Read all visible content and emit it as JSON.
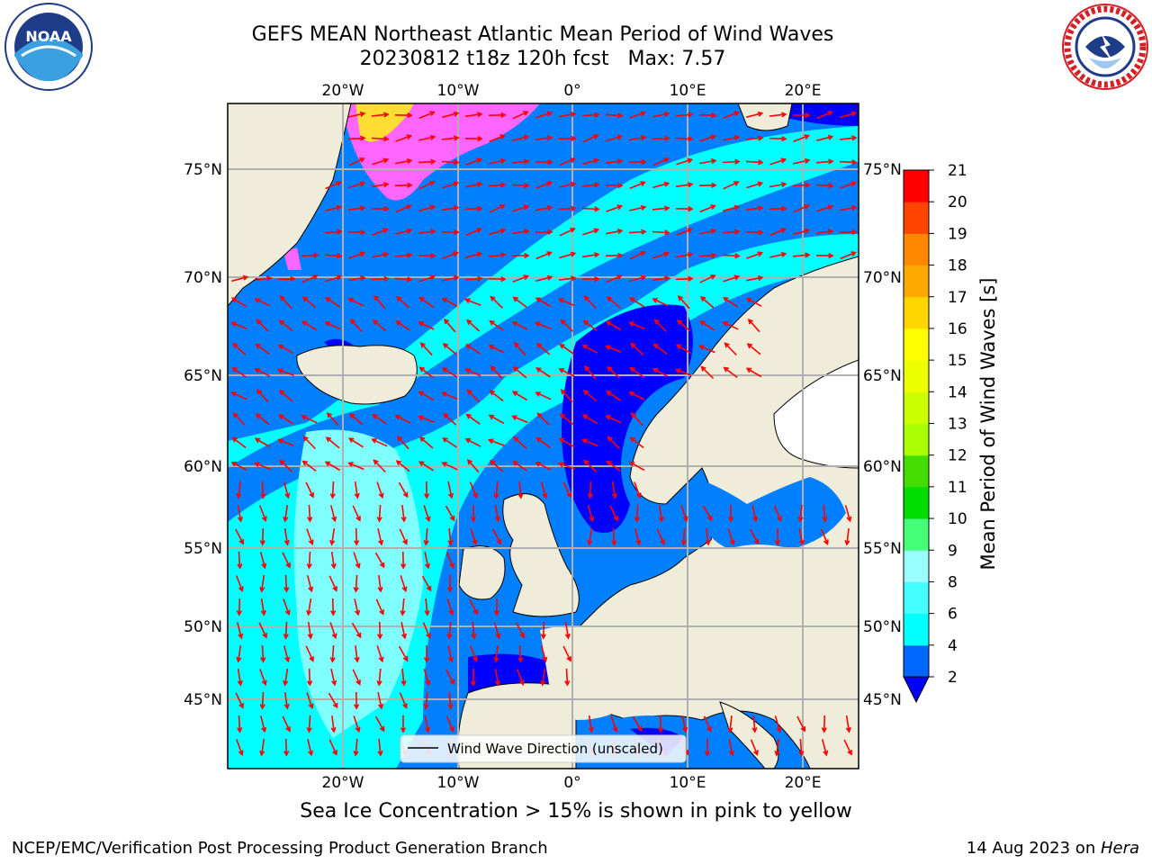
{
  "title": {
    "line1": "GEFS MEAN Northeast Atlantic Mean Period of Wind Waves",
    "line2": "20230812 t18z 120h fcst   Max: 7.57"
  },
  "logos": {
    "left": "NOAA logo",
    "right": "NATIONAL WEATHER SERVICE logo"
  },
  "map": {
    "lon_ticks_top": [
      "20°W",
      "10°W",
      "0°",
      "10°E",
      "20°E"
    ],
    "lon_ticks_bottom": [
      "20°W",
      "10°W",
      "0°",
      "10°E",
      "20°E"
    ],
    "lat_ticks_left": [
      "75°N",
      "70°N",
      "65°N",
      "60°N",
      "55°N",
      "50°N",
      "45°N"
    ],
    "lat_ticks_right": [
      "75°N",
      "70°N",
      "65°N",
      "60°N",
      "55°N",
      "50°N",
      "45°N"
    ],
    "legend_label": "Wind Wave Direction (unscaled)",
    "colors": {
      "land": "#efecd9",
      "ocean_low": "#0000ff",
      "ocean_2_4": "#0080ff",
      "ocean_4_6": "#00ffff",
      "ocean_6_8": "#80ffff",
      "ice_pink": "#ff66ff",
      "ice_yellow": "#ffdd33",
      "arrow": "#ff0000",
      "grid": "#b0b0b0"
    }
  },
  "colorbar": {
    "label": "Mean Period of Wind Waves [s]",
    "ticks": [
      "2",
      "4",
      "6",
      "8",
      "9",
      "10",
      "11",
      "12",
      "13",
      "14",
      "15",
      "16",
      "17",
      "18",
      "19",
      "20",
      "21"
    ],
    "colors": [
      "#0066ff",
      "#00ffff",
      "#44ffff",
      "#99ffff",
      "#44ff77",
      "#00dd00",
      "#44dd00",
      "#aaff00",
      "#ccff00",
      "#eeff00",
      "#ffff00",
      "#ffd700",
      "#ffaa00",
      "#ff8800",
      "#ff4400",
      "#ff0000"
    ],
    "extend_color": "#0000ff"
  },
  "ice_note": "Sea Ice Concentration > 15% is shown in pink to yellow",
  "footer": {
    "left": "NCEP/EMC/Verification Post Processing Product Generation Branch",
    "right_prefix": "14 Aug 2023 on ",
    "right_machine": "Hera"
  }
}
